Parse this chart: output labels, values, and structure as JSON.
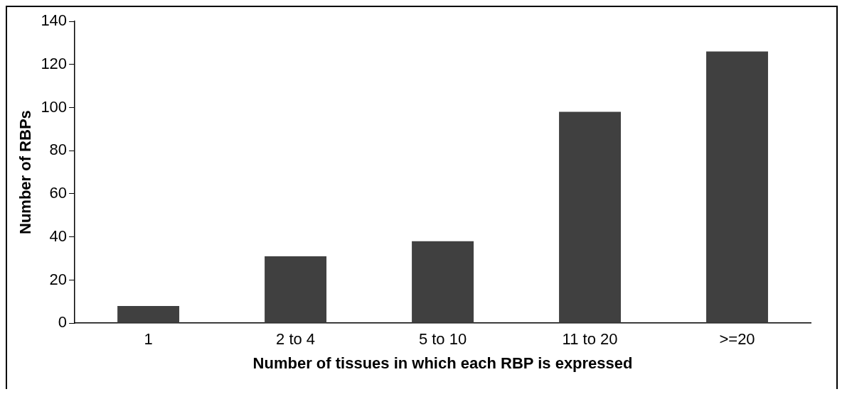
{
  "chart_data": {
    "type": "bar",
    "xlabel": "Number of tissues in which each RBP is expressed",
    "ylabel": "Number of RBPs",
    "categories": [
      "1",
      "2 to 4",
      "5 to 10",
      "11 to 20",
      ">=20"
    ],
    "values": [
      8,
      31,
      38,
      98,
      126
    ],
    "color": "#404040",
    "ylim": [
      0,
      140
    ],
    "yticks": [
      0,
      20,
      40,
      60,
      80,
      100,
      120,
      140
    ],
    "grid": false,
    "legend": false
  }
}
